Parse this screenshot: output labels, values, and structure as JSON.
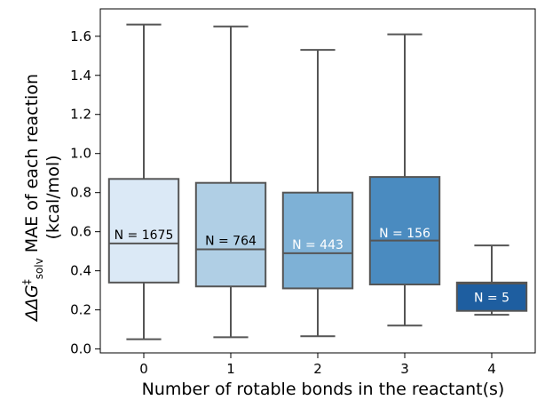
{
  "chart_data": {
    "type": "box",
    "xlabel": "Number of rotable bonds in the reactant(s)",
    "ylabel_prefix": "ΔΔG",
    "ylabel_sup": "‡",
    "ylabel_sub": "solv",
    "ylabel_rest": " MAE of each reaction",
    "ylabel_line2": "(kcal/mol)",
    "ylim": [
      -0.02,
      1.74
    ],
    "yticks": [
      0.0,
      0.2,
      0.4,
      0.6,
      0.8,
      1.0,
      1.2,
      1.4,
      1.6
    ],
    "ytick_labels": [
      "0.0",
      "0.2",
      "0.4",
      "0.6",
      "0.8",
      "1.0",
      "1.2",
      "1.4",
      "1.6"
    ],
    "categories": [
      "0",
      "1",
      "2",
      "3",
      "4"
    ],
    "boxes": [
      {
        "category": "0",
        "whisker_low": 0.05,
        "q1": 0.34,
        "median": 0.54,
        "q3": 0.87,
        "whisker_high": 1.66,
        "n_label": "N = 1675",
        "color": "#dbe9f6",
        "label_color": "#000000"
      },
      {
        "category": "1",
        "whisker_low": 0.06,
        "q1": 0.32,
        "median": 0.51,
        "q3": 0.85,
        "whisker_high": 1.65,
        "n_label": "N = 764",
        "color": "#b0cfe5",
        "label_color": "#000000"
      },
      {
        "category": "2",
        "whisker_low": 0.065,
        "q1": 0.31,
        "median": 0.49,
        "q3": 0.8,
        "whisker_high": 1.53,
        "n_label": "N = 443",
        "color": "#7eb1d6",
        "label_color": "#ffffff"
      },
      {
        "category": "3",
        "whisker_low": 0.12,
        "q1": 0.33,
        "median": 0.555,
        "q3": 0.88,
        "whisker_high": 1.61,
        "n_label": "N = 156",
        "color": "#4a8bc0",
        "label_color": "#ffffff"
      },
      {
        "category": "4",
        "whisker_low": 0.175,
        "q1": 0.195,
        "median": 0.335,
        "q3": 0.34,
        "whisker_high": 0.53,
        "n_label": "N = 5",
        "color": "#1e5ea0",
        "label_color": "#ffffff"
      }
    ],
    "n_label_values": [
      0.585,
      0.555,
      0.535,
      0.595,
      0.265
    ],
    "colors": {
      "line": "#555555",
      "axis": "#000000"
    }
  }
}
